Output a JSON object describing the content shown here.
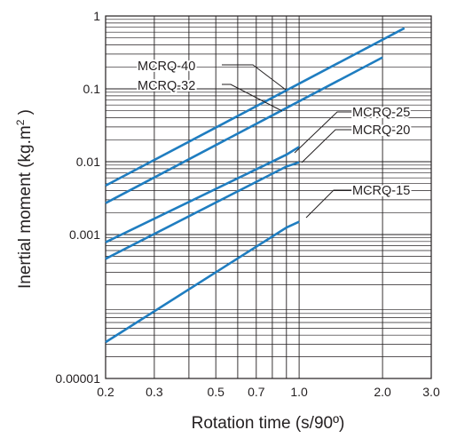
{
  "chart_data": {
    "type": "line",
    "title": "",
    "xlabel": "Rotation time (s/90º)",
    "ylabel_main": "Inertial moment (kg.m",
    "ylabel_sup": "2",
    "ylabel_end": " )",
    "x_scale": "log",
    "y_scale": "log",
    "xlim": [
      0.2,
      3.0
    ],
    "ylim": [
      1e-05,
      1
    ],
    "grid": true,
    "x_ticks": [
      {
        "value": 0.2,
        "label": "0.2"
      },
      {
        "value": 0.3,
        "label": "0.3"
      },
      {
        "value": 0.5,
        "label": "0.5"
      },
      {
        "value": 0.7,
        "label": "0.7"
      },
      {
        "value": 1.0,
        "label": "1.0"
      },
      {
        "value": 2.0,
        "label": "2.0"
      },
      {
        "value": 3.0,
        "label": "3.0"
      }
    ],
    "y_ticks": [
      {
        "value": 1e-05,
        "label": "0.00001"
      },
      {
        "value": 0.001,
        "label": "0.001"
      },
      {
        "value": 0.01,
        "label": "0.01"
      },
      {
        "value": 0.1,
        "label": "0.1"
      },
      {
        "value": 1,
        "label": "1"
      }
    ],
    "series_color": "#1f7dc0",
    "series": [
      {
        "name": "MCRQ-40",
        "x": [
          0.2,
          2.4
        ],
        "y": [
          0.0047,
          0.68
        ]
      },
      {
        "name": "MCRQ-32",
        "x": [
          0.2,
          2.0
        ],
        "y": [
          0.0027,
          0.27
        ]
      },
      {
        "name": "MCRQ-25",
        "x": [
          0.2,
          0.9,
          1.0
        ],
        "y": [
          0.00078,
          0.0125,
          0.016
        ]
      },
      {
        "name": "MCRQ-20",
        "x": [
          0.2,
          0.9,
          1.0
        ],
        "y": [
          0.00046,
          0.0086,
          0.0098
        ]
      },
      {
        "name": "MCRQ-15",
        "x": [
          0.2,
          0.9,
          1.0
        ],
        "y": [
          3.2e-05,
          0.00125,
          0.0015
        ]
      }
    ]
  }
}
